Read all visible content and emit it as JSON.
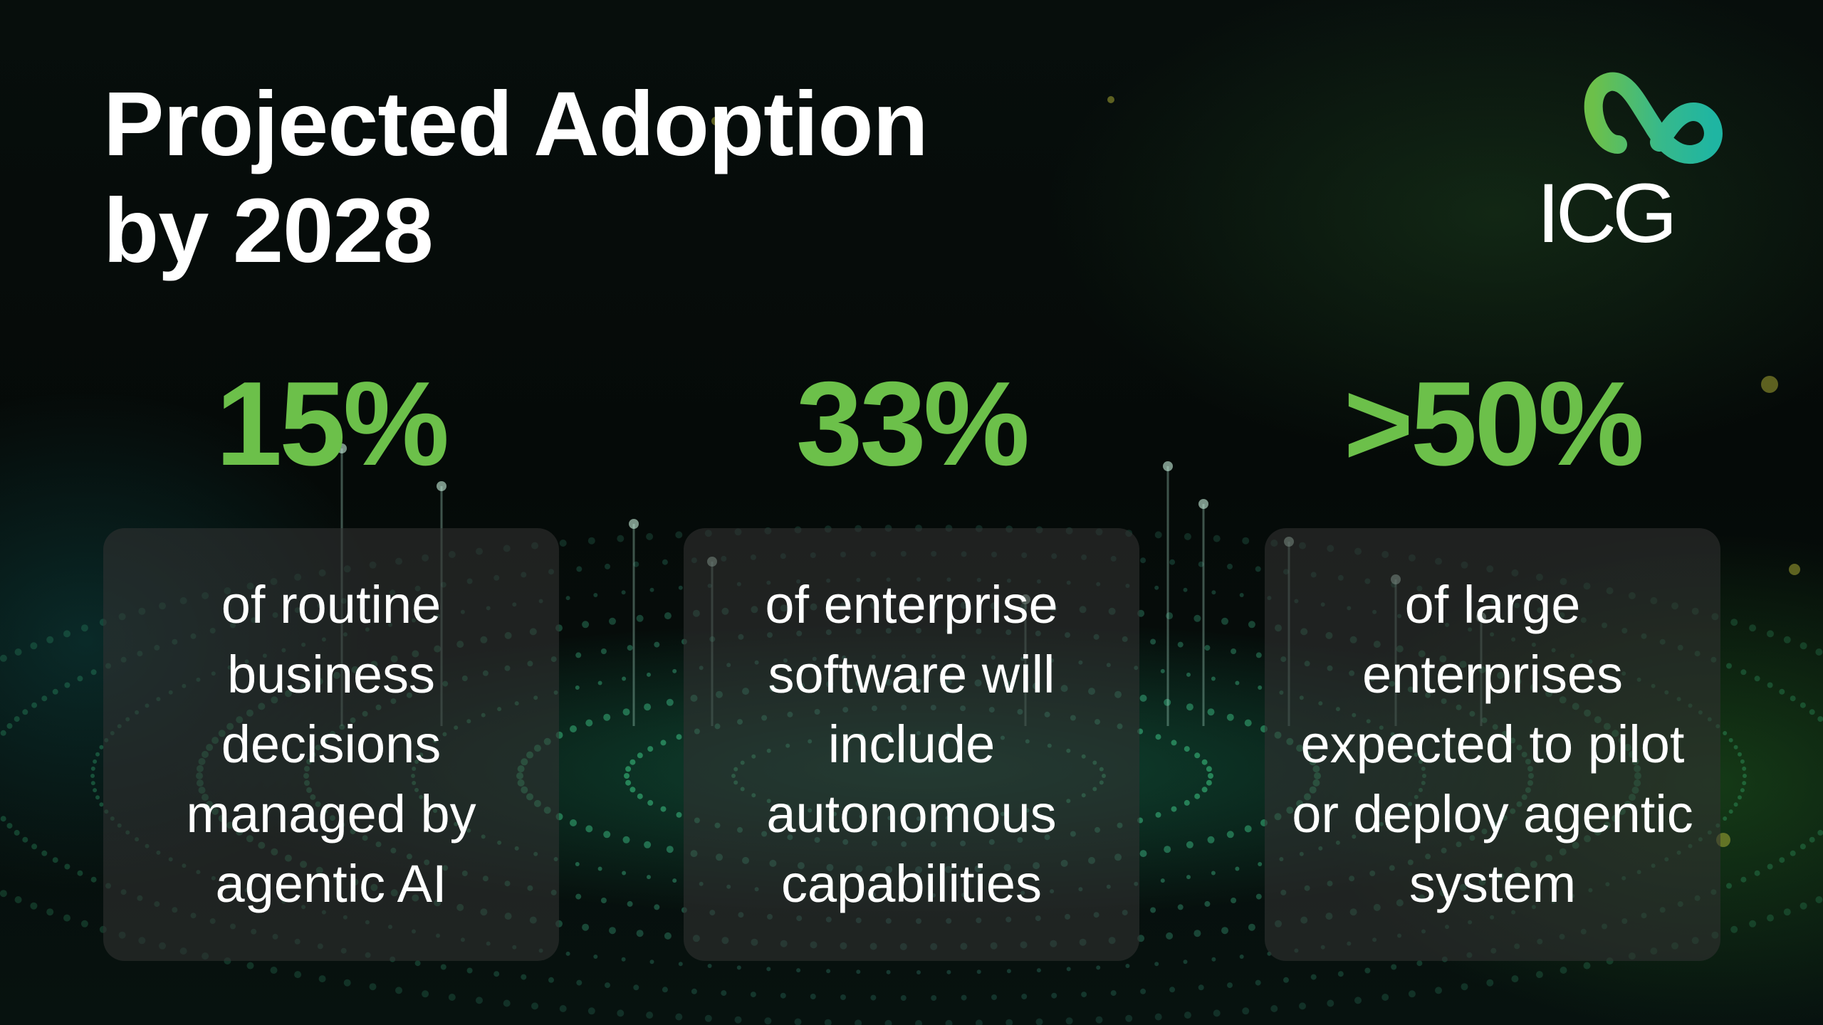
{
  "title": {
    "line1": "Projected Adoption",
    "line2": "by 2028"
  },
  "logo": {
    "text": "ICG",
    "icon": "infinity-icon",
    "colors": {
      "green": "#6cc04a",
      "teal": "#1fb5a2"
    }
  },
  "accent_color": "#6cc04a",
  "stats": [
    {
      "value": "15%",
      "description": "of routine business decisions managed by agentic AI"
    },
    {
      "value": "33%",
      "description": "of enterprise software will include autonomous capabilities"
    },
    {
      "value": ">50%",
      "description": "of large enterprises expected to pilot or deploy agentic system"
    }
  ]
}
